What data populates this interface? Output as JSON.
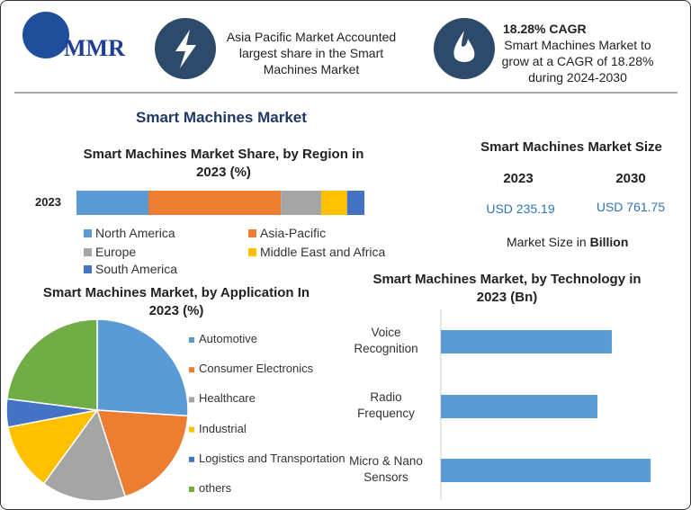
{
  "logo": "MMR",
  "header": {
    "highlight": "Asia Pacific Market Accounted largest share in the Smart Machines Market",
    "cagr_title": "18.28% CAGR",
    "cagr_text": "Smart Machines Market to grow at a CAGR of 18.28% during 2024-2030"
  },
  "title": "Smart Machines Market",
  "market_size": {
    "title": "Smart Machines Market Size",
    "years": [
      "2023",
      "2030"
    ],
    "values": [
      "USD 235.19",
      "USD 761.75"
    ],
    "unit_prefix": "Market Size in",
    "unit": "Billion"
  },
  "chart_data": [
    {
      "type": "stacked_bar",
      "title": "Smart Machines Market Share, by Region in 2023 (%)",
      "categories": [
        "2023"
      ],
      "series": [
        {
          "name": "North America",
          "color": "#5b9bd5",
          "values": [
            25
          ]
        },
        {
          "name": "Asia-Pacific",
          "color": "#ed7d31",
          "values": [
            46
          ]
        },
        {
          "name": "Europe",
          "color": "#a5a5a5",
          "values": [
            14
          ]
        },
        {
          "name": "Middle East and Africa",
          "color": "#ffc000",
          "values": [
            9
          ]
        },
        {
          "name": "South America",
          "color": "#4472c4",
          "values": [
            6
          ]
        }
      ]
    },
    {
      "type": "pie",
      "title": "Smart Machines Market, by Application In 2023 (%)",
      "categories": [
        "Automotive",
        "Consumer Electronics",
        "Healthcare",
        "Industrial",
        "Logistics and Transportation",
        "others"
      ],
      "values": [
        26,
        19,
        15,
        12,
        5,
        23
      ],
      "colors": [
        "#5b9bd5",
        "#ed7d31",
        "#a5a5a5",
        "#ffc000",
        "#4472c4",
        "#70ad47"
      ]
    },
    {
      "type": "hbar",
      "title": "Smart Machines Market, by Technology in 2023 (Bn)",
      "categories": [
        "Voice Recognition",
        "Radio Frequency",
        "Micro & Nano Sensors"
      ],
      "values": [
        74.8,
        68.5,
        91.8
      ],
      "color": "#5b9bd5",
      "xlim": [
        0,
        100
      ]
    }
  ]
}
